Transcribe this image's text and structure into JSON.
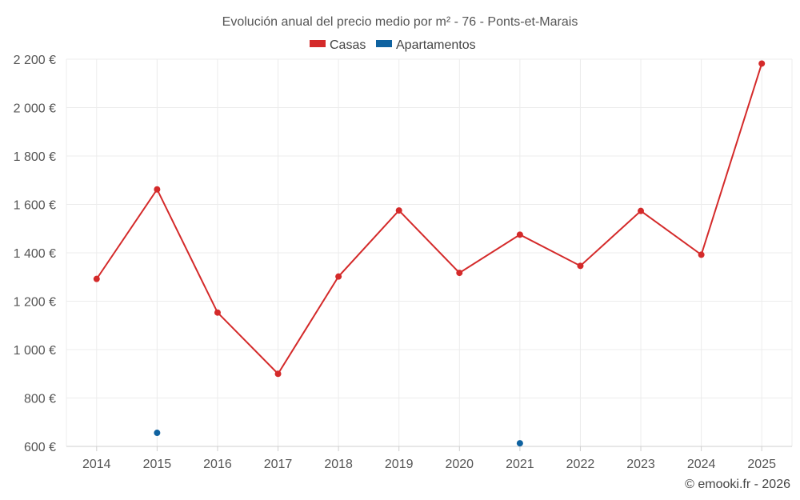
{
  "chart_data": {
    "type": "line",
    "title": "Evolución anual del precio medio por m² - 76 - Ponts-et-Marais",
    "categories": [
      "2014",
      "2015",
      "2016",
      "2017",
      "2018",
      "2019",
      "2020",
      "2021",
      "2022",
      "2023",
      "2024",
      "2025"
    ],
    "ylim": [
      600,
      2200
    ],
    "yticks": [
      600,
      800,
      1000,
      1200,
      1400,
      1600,
      1800,
      2000,
      2200
    ],
    "ytick_labels": [
      "600 €",
      "800 €",
      "1 000 €",
      "1 200 €",
      "1 400 €",
      "1 600 €",
      "1 800 €",
      "2 000 €",
      "2 200 €"
    ],
    "grid": true,
    "legend_position": "top-center",
    "series": [
      {
        "name": "Casas",
        "color": "#d42a2a",
        "values": [
          1292,
          1662,
          1153,
          900,
          1302,
          1575,
          1317,
          1475,
          1346,
          1573,
          1392,
          2182
        ]
      },
      {
        "name": "Apartamentos",
        "color": "#0f62a0",
        "values": [
          null,
          656,
          null,
          null,
          null,
          null,
          null,
          613,
          null,
          null,
          null,
          null
        ]
      }
    ]
  },
  "credit": "© emooki.fr - 2026"
}
